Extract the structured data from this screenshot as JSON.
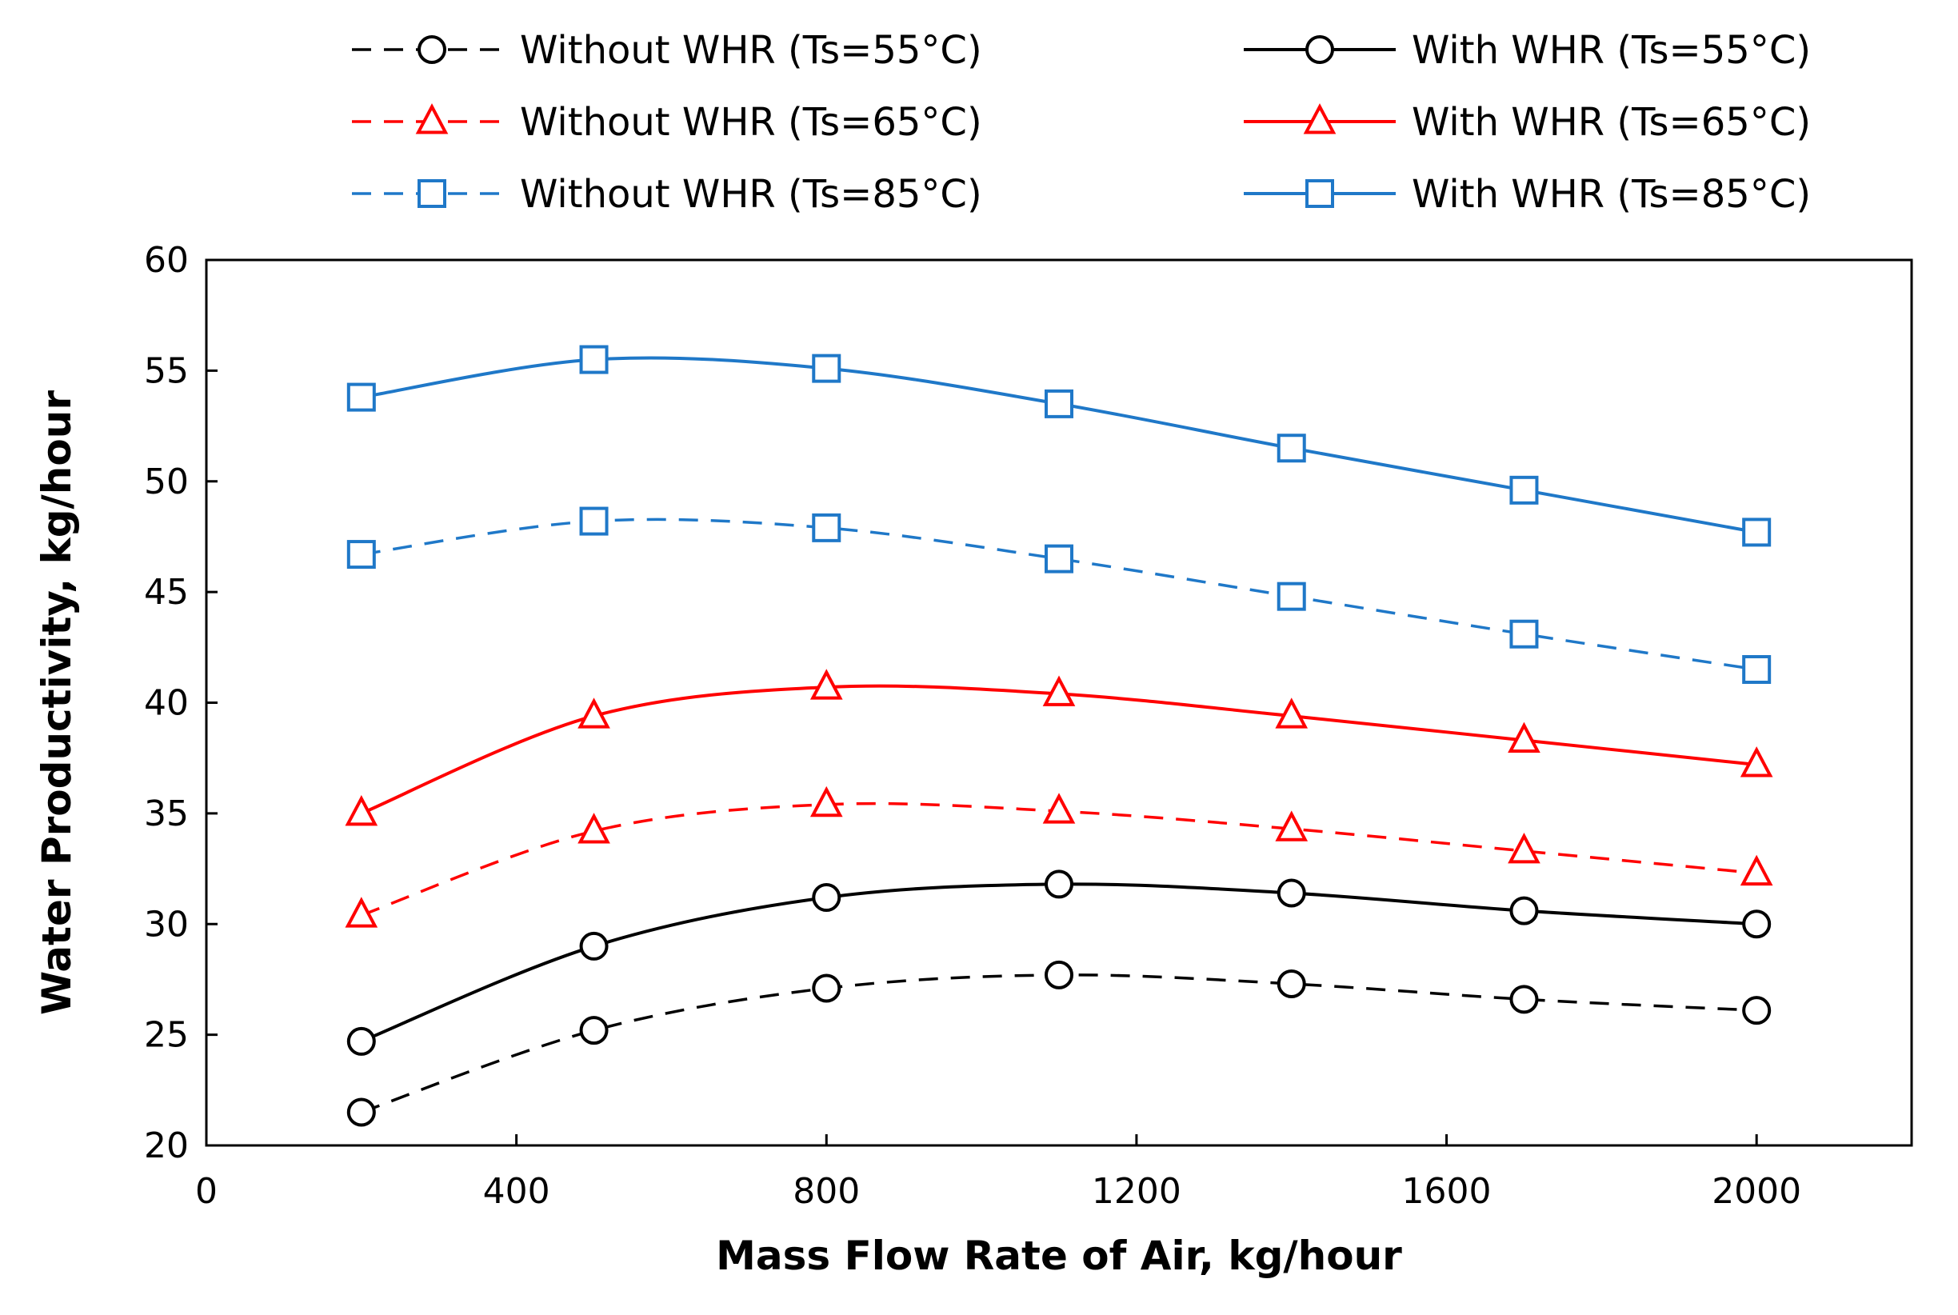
{
  "chart_data": {
    "type": "line",
    "title": "",
    "xlabel": "Mass Flow Rate of Air, kg/hour",
    "ylabel": "Water Productivity, kg/hour",
    "xlim": [
      0,
      2200
    ],
    "ylim": [
      20,
      60
    ],
    "xticks": [
      0,
      400,
      800,
      1200,
      1600,
      2000
    ],
    "yticks": [
      20,
      25,
      30,
      35,
      40,
      45,
      50,
      55,
      60
    ],
    "grid": false,
    "legend_position": "top",
    "x": [
      200,
      500,
      800,
      1100,
      1400,
      1700,
      2000
    ],
    "series": [
      {
        "name": "Without WHR (Ts=55°C)",
        "color": "#000000",
        "dashed": true,
        "marker": "circle",
        "values": [
          21.5,
          25.2,
          27.1,
          27.7,
          27.3,
          26.6,
          26.1
        ]
      },
      {
        "name": "With WHR (Ts=55°C)",
        "color": "#000000",
        "dashed": false,
        "marker": "circle",
        "values": [
          24.7,
          29.0,
          31.2,
          31.8,
          31.4,
          30.6,
          30.0
        ]
      },
      {
        "name": "Without WHR (Ts=65°C)",
        "color": "#ff0000",
        "dashed": true,
        "marker": "triangle",
        "values": [
          30.4,
          34.2,
          35.4,
          35.1,
          34.3,
          33.3,
          32.3
        ]
      },
      {
        "name": "With WHR (Ts=65°C)",
        "color": "#ff0000",
        "dashed": false,
        "marker": "triangle",
        "values": [
          35.0,
          39.4,
          40.7,
          40.4,
          39.4,
          38.3,
          37.2
        ]
      },
      {
        "name": "Without WHR (Ts=85°C)",
        "color": "#1f78c8",
        "dashed": true,
        "marker": "square",
        "values": [
          46.7,
          48.2,
          47.9,
          46.5,
          44.8,
          43.1,
          41.5
        ]
      },
      {
        "name": "With WHR (Ts=85°C)",
        "color": "#1f78c8",
        "dashed": false,
        "marker": "square",
        "values": [
          53.8,
          55.5,
          55.1,
          53.5,
          51.5,
          49.6,
          47.7
        ]
      }
    ]
  }
}
